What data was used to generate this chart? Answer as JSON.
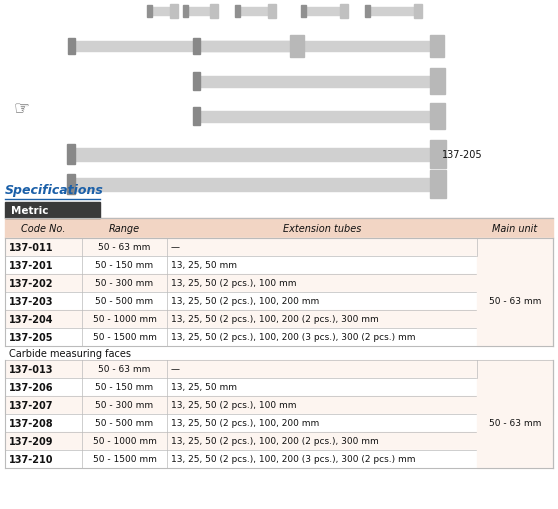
{
  "title": "Specifications",
  "section_label": "Metric",
  "header_row": [
    "Code No.",
    "Range",
    "Extension tubes",
    "Main unit"
  ],
  "section1_rows": [
    [
      "137-011",
      "50 - 63 mm",
      "—"
    ],
    [
      "137-201",
      "50 - 150 mm",
      "13, 25, 50 mm"
    ],
    [
      "137-202",
      "50 - 300 mm",
      "13, 25, 50 (2 pcs.), 100 mm"
    ],
    [
      "137-203",
      "50 - 500 mm",
      "13, 25, 50 (2 pcs.), 100, 200 mm"
    ],
    [
      "137-204",
      "50 - 1000 mm",
      "13, 25, 50 (2 pcs.), 100, 200 (2 pcs.), 300 mm"
    ],
    [
      "137-205",
      "50 - 1500 mm",
      "13, 25, 50 (2 pcs.), 100, 200 (3 pcs.), 300 (2 pcs.) mm"
    ]
  ],
  "section1_main_unit": "50 - 63 mm",
  "section2_label": "Carbide measuring faces",
  "section2_rows": [
    [
      "137-013",
      "50 - 63 mm",
      "—"
    ],
    [
      "137-206",
      "50 - 150 mm",
      "13, 25, 50 mm"
    ],
    [
      "137-207",
      "50 - 300 mm",
      "13, 25, 50 (2 pcs.), 100 mm"
    ],
    [
      "137-208",
      "50 - 500 mm",
      "13, 25, 50 (2 pcs.), 100, 200 mm"
    ],
    [
      "137-209",
      "50 - 1000 mm",
      "13, 25, 50 (2 pcs.), 100, 200 (2 pcs.), 300 mm"
    ],
    [
      "137-210",
      "50 - 1500 mm",
      "13, 25, 50 (2 pcs.), 100, 200 (3 pcs.), 300 (2 pcs.) mm"
    ]
  ],
  "section2_main_unit": "50 - 63 mm",
  "header_bg": "#f2d5c4",
  "row_bg_light": "#fdf5f0",
  "row_bg_white": "#ffffff",
  "section_header_bg": "#3a3a3a",
  "section_header_color": "#ffffff",
  "title_color": "#1a5fa8",
  "border_color": "#bbbbbb",
  "text_color": "#111111",
  "label_color": "#555555",
  "fig_bg": "#ffffff",
  "micrometer_body": "#d0d0d0",
  "micrometer_end": "#b0b0b0",
  "micrometer_tip": "#888888"
}
